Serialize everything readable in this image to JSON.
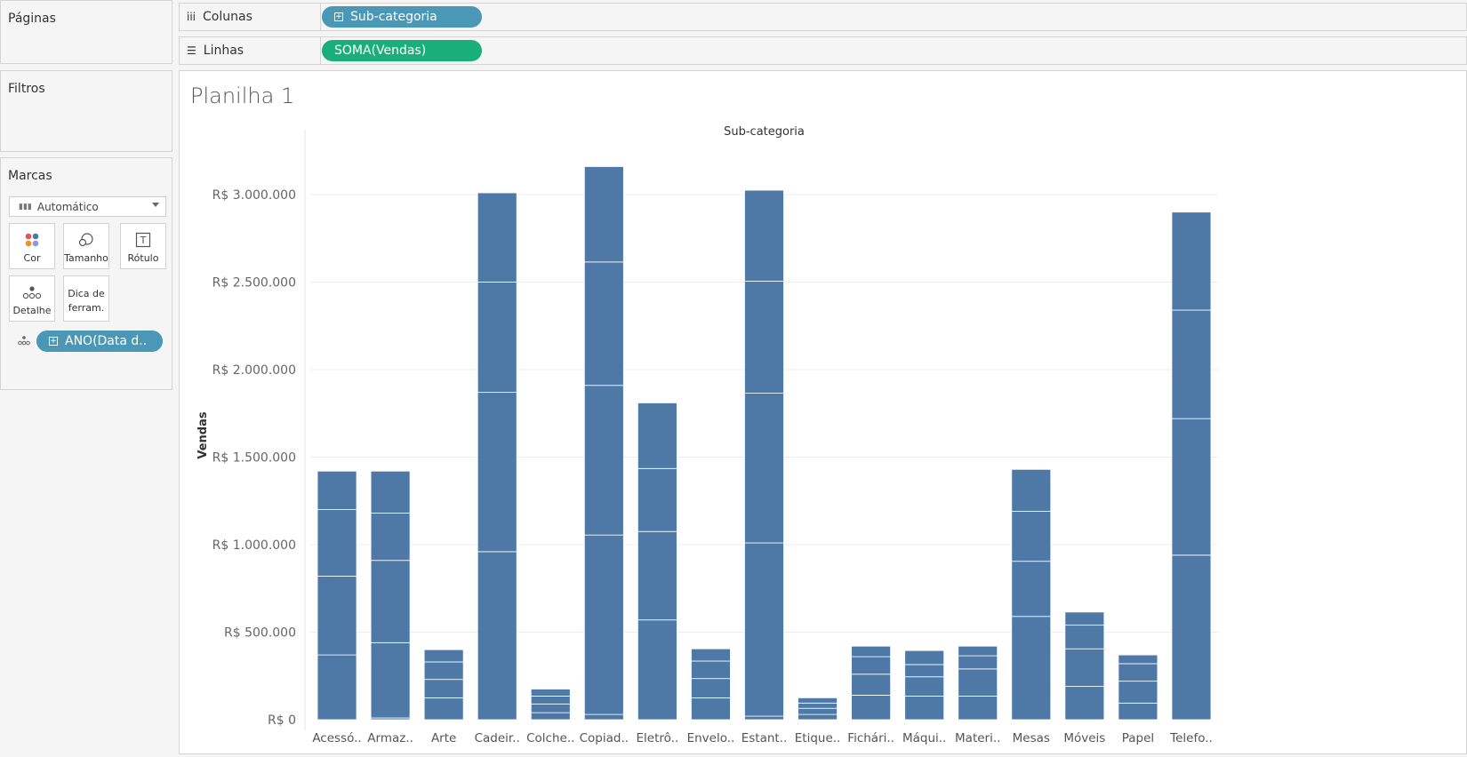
{
  "side": {
    "pages_title": "Páginas",
    "filters_title": "Filtros",
    "marks_title": "Marcas",
    "mark_type": "Automático",
    "mark_buttons": {
      "color": "Cor",
      "size": "Tamanho",
      "label": "Rótulo",
      "detail": "Detalhe",
      "tooltip_line1": "Dica de",
      "tooltip_line2": "ferram."
    },
    "detail_pill": "ANO(Data d.."
  },
  "shelves": {
    "columns_label": "Colunas",
    "columns_pill": "Sub-categoria",
    "rows_label": "Linhas",
    "rows_pill": "SOMA(Vendas)"
  },
  "sheet_title": "Planilha 1",
  "colors": {
    "bar": "#4e79a7",
    "pill_dimension": "#4a97b6",
    "pill_measure": "#1aae7a"
  },
  "chart_data": {
    "type": "bar",
    "stacked": true,
    "title": "Sub-categoria",
    "xlabel": "",
    "ylabel": "Vendas",
    "ylim": [
      0,
      3200000
    ],
    "ticks": [
      {
        "value": 0,
        "label": "R$ 0"
      },
      {
        "value": 500000,
        "label": "R$ 500.000"
      },
      {
        "value": 1000000,
        "label": "R$ 1.000.000"
      },
      {
        "value": 1500000,
        "label": "R$ 1.500.000"
      },
      {
        "value": 2000000,
        "label": "R$ 2.000.000"
      },
      {
        "value": 2500000,
        "label": "R$ 2.500.000"
      },
      {
        "value": 3000000,
        "label": "R$ 3.000.000"
      }
    ],
    "grid": true,
    "categories": [
      "Acessó..",
      "Armaz..",
      "Arte",
      "Cadeir..",
      "Colche..",
      "Copiad..",
      "Eletrô..",
      "Envelo..",
      "Estant..",
      "Etique..",
      "Fichári..",
      "Máqui..",
      "Materi..",
      "Mesas",
      "Móveis",
      "Papel",
      "Telefo.."
    ],
    "segments": [
      [
        370000,
        450000,
        380000,
        220000
      ],
      [
        10000,
        430000,
        470000,
        270000,
        240000
      ],
      [
        125000,
        105000,
        100000,
        70000
      ],
      [
        960000,
        910000,
        630000,
        510000
      ],
      [
        40000,
        50000,
        45000,
        40000
      ],
      [
        30000,
        1025000,
        855000,
        705000,
        545000
      ],
      [
        570000,
        505000,
        360000,
        375000
      ],
      [
        125000,
        110000,
        100000,
        70000
      ],
      [
        20000,
        990000,
        855000,
        640000,
        520000
      ],
      [
        30000,
        35000,
        30000,
        30000
      ],
      [
        140000,
        120000,
        100000,
        60000
      ],
      [
        135000,
        110000,
        70000,
        80000
      ],
      [
        135000,
        155000,
        75000,
        55000
      ],
      [
        590000,
        315000,
        285000,
        240000
      ],
      [
        190000,
        215000,
        135000,
        75000
      ],
      [
        95000,
        125000,
        100000,
        50000
      ],
      [
        940000,
        780000,
        620000,
        560000
      ]
    ]
  }
}
